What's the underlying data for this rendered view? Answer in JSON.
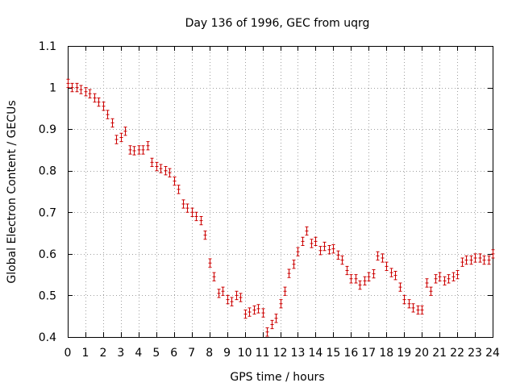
{
  "chart_data": {
    "type": "scatter",
    "title": "Day 136 of 1996, GEC from uqrg",
    "xlabel": "GPS time / hours",
    "ylabel": "Global Electron Content / GECUs",
    "xlim": [
      0,
      24
    ],
    "ylim": [
      0.4,
      1.1
    ],
    "xticks": [
      "0",
      "1",
      "2",
      "3",
      "4",
      "5",
      "6",
      "7",
      "8",
      "9",
      "10",
      "11",
      "12",
      "13",
      "14",
      "15",
      "16",
      "17",
      "18",
      "19",
      "20",
      "21",
      "22",
      "23",
      "24"
    ],
    "yticks": [
      "0.4",
      "0.5",
      "0.6",
      "0.7",
      "0.8",
      "0.9",
      "1",
      "1.1"
    ],
    "grid": true,
    "marker_color": "#cc0000",
    "error": 0.01,
    "series": [
      {
        "name": "GEC",
        "x": [
          0.0,
          0.25,
          0.5,
          0.75,
          1.0,
          1.25,
          1.5,
          1.75,
          2.0,
          2.25,
          2.5,
          2.75,
          3.0,
          3.25,
          3.5,
          3.75,
          4.0,
          4.25,
          4.5,
          4.75,
          5.0,
          5.25,
          5.5,
          5.75,
          6.0,
          6.25,
          6.5,
          6.75,
          7.0,
          7.25,
          7.5,
          7.75,
          8.0,
          8.25,
          8.5,
          8.75,
          9.0,
          9.25,
          9.5,
          9.75,
          10.0,
          10.25,
          10.5,
          10.75,
          11.0,
          11.25,
          11.5,
          11.75,
          12.0,
          12.25,
          12.5,
          12.75,
          13.0,
          13.25,
          13.5,
          13.75,
          14.0,
          14.25,
          14.5,
          14.75,
          15.0,
          15.25,
          15.5,
          15.75,
          16.0,
          16.25,
          16.5,
          16.75,
          17.0,
          17.25,
          17.5,
          17.75,
          18.0,
          18.25,
          18.5,
          18.75,
          19.0,
          19.25,
          19.5,
          19.75,
          20.0,
          20.25,
          20.5,
          20.75,
          21.0,
          21.25,
          21.5,
          21.75,
          22.0,
          22.25,
          22.5,
          22.75,
          23.0,
          23.25,
          23.5,
          23.75,
          24.0
        ],
        "y": [
          1.01,
          1.0,
          1.0,
          0.995,
          0.99,
          0.985,
          0.975,
          0.965,
          0.955,
          0.935,
          0.915,
          0.875,
          0.88,
          0.895,
          0.85,
          0.848,
          0.85,
          0.85,
          0.86,
          0.82,
          0.81,
          0.805,
          0.8,
          0.795,
          0.775,
          0.755,
          0.72,
          0.71,
          0.7,
          0.69,
          0.68,
          0.645,
          0.578,
          0.545,
          0.505,
          0.51,
          0.49,
          0.485,
          0.5,
          0.495,
          0.455,
          0.46,
          0.465,
          0.468,
          0.458,
          0.412,
          0.43,
          0.445,
          0.48,
          0.51,
          0.553,
          0.575,
          0.605,
          0.63,
          0.655,
          0.625,
          0.63,
          0.608,
          0.618,
          0.61,
          0.612,
          0.597,
          0.585,
          0.56,
          0.54,
          0.54,
          0.525,
          0.535,
          0.545,
          0.552,
          0.595,
          0.59,
          0.57,
          0.555,
          0.548,
          0.52,
          0.49,
          0.48,
          0.47,
          0.465,
          0.465,
          0.53,
          0.51,
          0.54,
          0.545,
          0.535,
          0.54,
          0.545,
          0.55,
          0.58,
          0.585,
          0.585,
          0.59,
          0.59,
          0.585,
          0.585,
          0.6
        ]
      }
    ]
  }
}
